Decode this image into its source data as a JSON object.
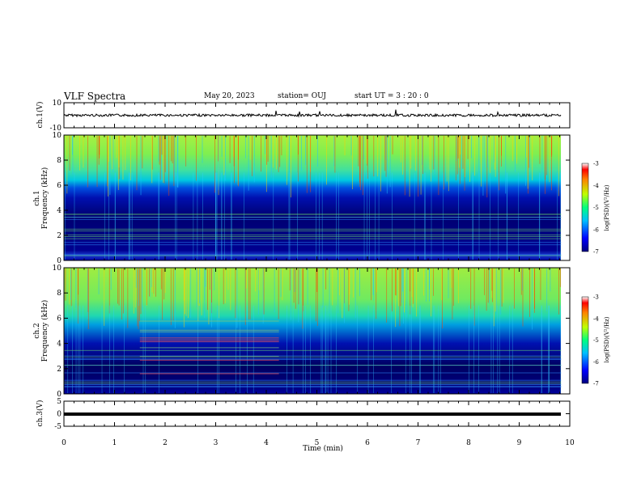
{
  "header": {
    "title": "VLF Spectra",
    "date": "May 20, 2023",
    "station": "station= OUJ",
    "start": "start UT =  3 : 20 : 0"
  },
  "colors": {
    "spectrum_low": "#00007f",
    "spectrum_mid": "#00ff7f",
    "spectrum_high": "#ff0000",
    "trace": "#000000"
  },
  "chart_data": [
    {
      "type": "line",
      "panel": "ch1-waveform",
      "ylabel": "ch.1(V)",
      "ylim": [
        -10,
        10
      ],
      "yticks": [
        "10",
        "-10"
      ],
      "xlim": [
        0,
        10
      ],
      "description_values": {
        "baseline": 0,
        "typical_amplitude": 1.5
      }
    },
    {
      "type": "heatmap",
      "panel": "ch1-spectrogram",
      "ylabel": "ch.1\nFrequency (kHz)",
      "ylim": [
        0,
        10
      ],
      "yticks": [
        "0",
        "2",
        "4",
        "6",
        "8",
        "10"
      ],
      "xlim": [
        0,
        10
      ],
      "colorbar": {
        "label": "log(PSD)(V²/Hz)",
        "range": [
          -7,
          -3
        ],
        "ticks": [
          "-3",
          "-4",
          "-5",
          "-6",
          "-7"
        ]
      },
      "data_extent_min": 9.83
    },
    {
      "type": "heatmap",
      "panel": "ch2-spectrogram",
      "ylabel": "ch.2\nFrequency (kHz)",
      "ylim": [
        0,
        10
      ],
      "yticks": [
        "0",
        "2",
        "4",
        "6",
        "8",
        "10"
      ],
      "xlim": [
        0,
        10
      ],
      "colorbar": {
        "label": "log(PSD)(V²/Hz)",
        "range": [
          -7,
          -3
        ],
        "ticks": [
          "-3",
          "-4",
          "-5",
          "-6",
          "-7"
        ]
      },
      "data_extent_min": 9.83
    },
    {
      "type": "line",
      "panel": "ch3-waveform",
      "ylabel": "ch.3(V)",
      "ylim": [
        -5,
        5
      ],
      "yticks": [
        "5",
        "0",
        "-5"
      ],
      "xlim": [
        0,
        10
      ],
      "description_values": {
        "baseline": 0
      }
    }
  ],
  "xaxis": {
    "label": "Time (min)",
    "ticks": [
      "0",
      "1",
      "2",
      "3",
      "4",
      "5",
      "6",
      "7",
      "8",
      "9",
      "10"
    ]
  }
}
